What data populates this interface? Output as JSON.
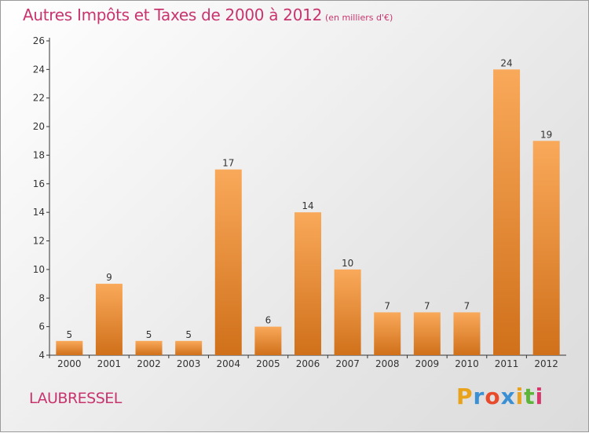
{
  "header": {
    "title": "Autres Impôts et Taxes de 2000 à 2012",
    "unit": "(en milliers d'€)"
  },
  "footer": {
    "town": "LAUBRESSEL",
    "logo": {
      "letters": [
        "P",
        "r",
        "o",
        "x",
        "i",
        "t",
        "i"
      ],
      "colors": [
        "#e8a21c",
        "#3b8fd3",
        "#e84a2c",
        "#3b8fd3",
        "#e8a21c",
        "#5db43a",
        "#d8376e"
      ]
    }
  },
  "colors": {
    "bar_top": "#f9a95a",
    "bar_bottom": "#d0701a",
    "title": "#c8346e",
    "axis": "#333333"
  },
  "chart_data": {
    "type": "bar",
    "title": "Autres Impôts et Taxes de 2000 à 2012",
    "subtitle": "(en milliers d'€)",
    "xlabel": "",
    "ylabel": "",
    "categories": [
      "2000",
      "2001",
      "2002",
      "2003",
      "2004",
      "2005",
      "2006",
      "2007",
      "2008",
      "2009",
      "2010",
      "2011",
      "2012"
    ],
    "values": [
      5,
      9,
      5,
      5,
      17,
      6,
      14,
      10,
      7,
      7,
      7,
      24,
      19
    ],
    "data_labels": [
      "5",
      "9",
      "5",
      "5",
      "17",
      "6",
      "14",
      "10",
      "7",
      "7",
      "7",
      "24",
      "19"
    ],
    "ylim": [
      4,
      26
    ],
    "yticks": [
      "4",
      "6",
      "8",
      "10",
      "12",
      "14",
      "16",
      "18",
      "20",
      "22",
      "24",
      "26"
    ],
    "grid": false,
    "legend": "none"
  }
}
